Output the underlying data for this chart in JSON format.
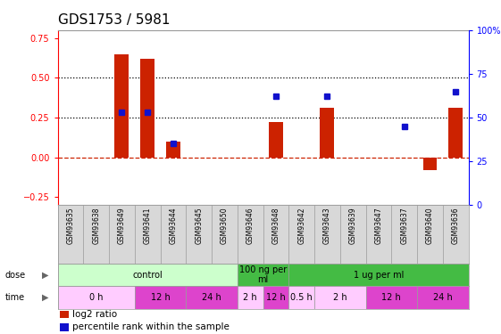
{
  "title": "GDS1753 / 5981",
  "samples": [
    "GSM93635",
    "GSM93638",
    "GSM93649",
    "GSM93641",
    "GSM93644",
    "GSM93645",
    "GSM93650",
    "GSM93646",
    "GSM93648",
    "GSM93642",
    "GSM93643",
    "GSM93639",
    "GSM93647",
    "GSM93637",
    "GSM93640",
    "GSM93636"
  ],
  "log2_ratio": [
    0.0,
    0.0,
    0.65,
    0.62,
    0.1,
    0.0,
    0.0,
    0.0,
    0.22,
    0.0,
    0.31,
    0.0,
    0.0,
    0.0,
    -0.08,
    0.31
  ],
  "percentile": [
    null,
    null,
    53,
    53,
    35,
    null,
    null,
    null,
    62,
    null,
    62,
    null,
    null,
    45,
    null,
    65
  ],
  "bar_color": "#cc2200",
  "dot_color": "#1111cc",
  "ylim_left": [
    -0.3,
    0.8
  ],
  "ylim_right": [
    0,
    100
  ],
  "yticks_left": [
    -0.25,
    0.0,
    0.25,
    0.5,
    0.75
  ],
  "yticks_right": [
    0,
    25,
    50,
    75,
    100
  ],
  "hlines": [
    0.25,
    0.5
  ],
  "dose_groups": [
    {
      "label": "control",
      "start": 0,
      "end": 6,
      "color": "#ccffcc"
    },
    {
      "label": "100 ng per\nml",
      "start": 7,
      "end": 8,
      "color": "#44bb44"
    },
    {
      "label": "1 ug per ml",
      "start": 9,
      "end": 15,
      "color": "#44bb44"
    }
  ],
  "time_groups": [
    {
      "label": "0 h",
      "start": 0,
      "end": 2,
      "color": "#ffccff"
    },
    {
      "label": "12 h",
      "start": 3,
      "end": 4,
      "color": "#dd44cc"
    },
    {
      "label": "24 h",
      "start": 5,
      "end": 6,
      "color": "#dd44cc"
    },
    {
      "label": "2 h",
      "start": 7,
      "end": 7,
      "color": "#ffccff"
    },
    {
      "label": "12 h",
      "start": 8,
      "end": 8,
      "color": "#dd44cc"
    },
    {
      "label": "0.5 h",
      "start": 9,
      "end": 9,
      "color": "#ffccff"
    },
    {
      "label": "2 h",
      "start": 10,
      "end": 11,
      "color": "#ffccff"
    },
    {
      "label": "12 h",
      "start": 12,
      "end": 13,
      "color": "#dd44cc"
    },
    {
      "label": "24 h",
      "start": 14,
      "end": 15,
      "color": "#dd44cc"
    }
  ],
  "dose_label": "dose",
  "time_label": "time",
  "legend_items": [
    {
      "label": "log2 ratio",
      "color": "#cc2200"
    },
    {
      "label": "percentile rank within the sample",
      "color": "#1111cc"
    }
  ],
  "bg_color": "#ffffff",
  "spine_color": "#999999",
  "tick_fontsize": 7,
  "title_fontsize": 11,
  "sample_fontsize": 5.5,
  "row_fontsize": 7
}
